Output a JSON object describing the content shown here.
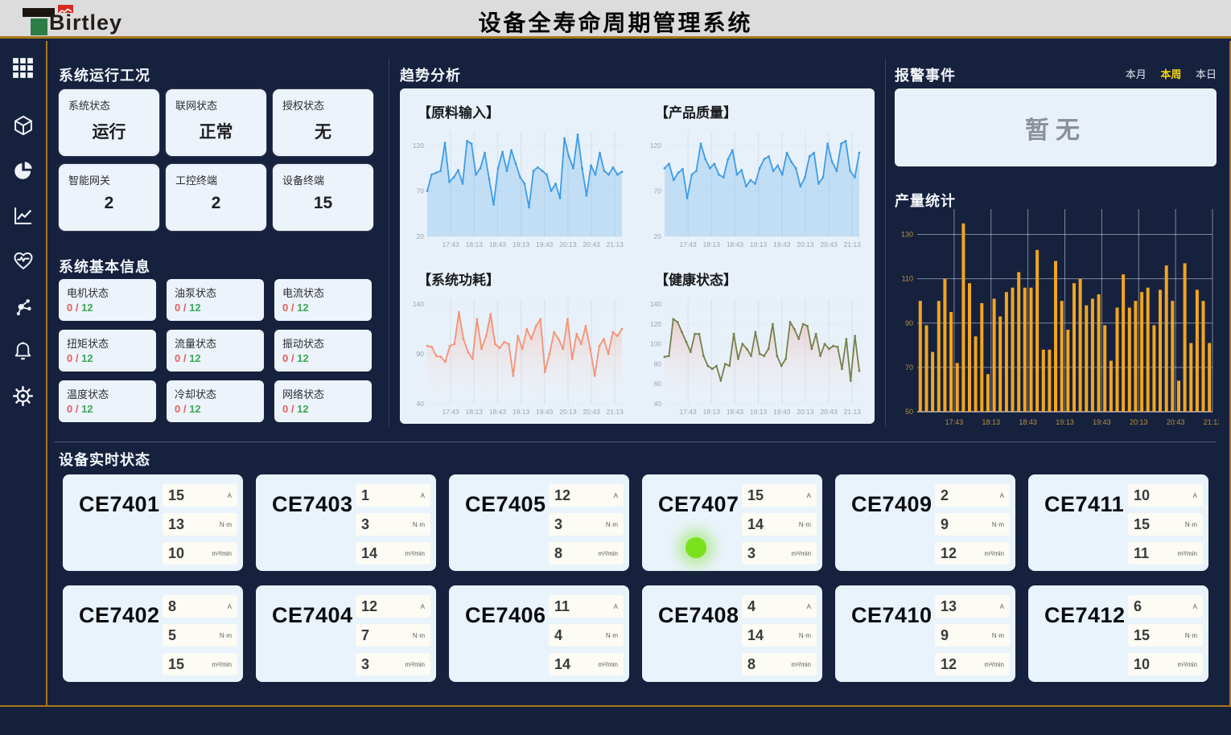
{
  "header": {
    "logo_text": "Birtley",
    "title": "设备全寿命周期管理系统"
  },
  "sidebar": {
    "icons": [
      "apps-grid-icon",
      "cube-icon",
      "pie-chart-icon",
      "line-chart-icon",
      "health-pulse-icon",
      "network-nodes-icon",
      "bell-icon",
      "gear-icon"
    ]
  },
  "colors": {
    "accent_gold": "#a8771d",
    "bg_dark": "#16213e",
    "card_light": "#ecf3fb",
    "bar_orange": "#f2a51f",
    "line_blue": "#3d9ce8",
    "line_salmon": "#f59274",
    "line_olive": "#74824a",
    "tab_active_yellow": "#f3d516",
    "status_red": "#e06060",
    "status_green": "#3da857",
    "indicator_green": "#7be01e"
  },
  "system_status": {
    "title": "系统运行工况",
    "cards": [
      {
        "label": "系统状态",
        "value": "运行"
      },
      {
        "label": "联网状态",
        "value": "正常"
      },
      {
        "label": "授权状态",
        "value": "无"
      },
      {
        "label": "智能网关",
        "value": "2"
      },
      {
        "label": "工控终端",
        "value": "2"
      },
      {
        "label": "设备终端",
        "value": "15"
      }
    ]
  },
  "system_info": {
    "title": "系统基本信息",
    "cards": [
      {
        "label": "电机状态",
        "current": "0",
        "divider": "/",
        "total": "12"
      },
      {
        "label": "油泵状态",
        "current": "0",
        "divider": "/",
        "total": "12"
      },
      {
        "label": "电流状态",
        "current": "0",
        "divider": "/",
        "total": "12"
      },
      {
        "label": "扭矩状态",
        "current": "0",
        "divider": "/",
        "total": "12"
      },
      {
        "label": "流量状态",
        "current": "0",
        "divider": "/",
        "total": "12"
      },
      {
        "label": "振动状态",
        "current": "0",
        "divider": "/",
        "total": "12"
      },
      {
        "label": "温度状态",
        "current": "0",
        "divider": "/",
        "total": "12"
      },
      {
        "label": "冷却状态",
        "current": "0",
        "divider": "/",
        "total": "12"
      },
      {
        "label": "网络状态",
        "current": "0",
        "divider": "/",
        "total": "12"
      }
    ]
  },
  "trend": {
    "title": "趋势分析"
  },
  "alarms": {
    "title": "报警事件",
    "tabs": [
      {
        "label": "本月",
        "active": false
      },
      {
        "label": "本周",
        "active": true
      },
      {
        "label": "本日",
        "active": false
      }
    ],
    "empty_text": "暂无"
  },
  "production": {
    "title": "产量统计"
  },
  "devices": {
    "title": "设备实时状态",
    "units": [
      "A",
      "N·m",
      "m³/min"
    ],
    "cards": [
      {
        "name": "CE7401",
        "values": [
          15,
          13,
          10
        ]
      },
      {
        "name": "CE7403",
        "values": [
          1,
          3,
          14
        ]
      },
      {
        "name": "CE7405",
        "values": [
          12,
          3,
          8
        ]
      },
      {
        "name": "CE7407",
        "values": [
          15,
          14,
          3
        ],
        "indicator": true
      },
      {
        "name": "CE7409",
        "values": [
          2,
          9,
          12
        ]
      },
      {
        "name": "CE7411",
        "values": [
          10,
          15,
          11
        ]
      },
      {
        "name": "CE7402",
        "values": [
          8,
          5,
          15
        ]
      },
      {
        "name": "CE7404",
        "values": [
          12,
          7,
          3
        ]
      },
      {
        "name": "CE7406",
        "values": [
          11,
          4,
          14
        ]
      },
      {
        "name": "CE7408",
        "values": [
          4,
          14,
          8
        ]
      },
      {
        "name": "CE7410",
        "values": [
          13,
          9,
          12
        ]
      },
      {
        "name": "CE7412",
        "values": [
          6,
          15,
          10
        ]
      }
    ]
  },
  "chart_data": [
    {
      "type": "line",
      "title": "【原料输入】",
      "color": "#3d9ce8",
      "fill": "rgba(61,156,232,0.22)",
      "ylim": [
        20,
        135
      ],
      "yticks": [
        20,
        70,
        120
      ],
      "grid": true,
      "legend": "none",
      "x_labels": [
        "17:43",
        "18:13",
        "18:43",
        "19:13",
        "19:43",
        "20:13",
        "20:43",
        "21:13"
      ],
      "values": [
        70,
        88,
        90,
        92,
        123,
        80,
        85,
        93,
        78,
        125,
        122,
        88,
        95,
        112,
        83,
        55,
        95,
        113,
        92,
        115,
        100,
        85,
        78,
        52,
        92,
        96,
        92,
        88,
        70,
        78,
        62,
        128,
        108,
        95,
        132,
        95,
        65,
        98,
        88,
        112,
        92,
        88,
        96,
        88,
        91
      ]
    },
    {
      "type": "line",
      "title": "【产品质量】",
      "color": "#3d9ce8",
      "fill": "rgba(61,156,232,0.22)",
      "ylim": [
        20,
        135
      ],
      "yticks": [
        20,
        70,
        120
      ],
      "grid": true,
      "legend": "none",
      "x_labels": [
        "17:43",
        "18:13",
        "18:43",
        "19:13",
        "19:43",
        "20:13",
        "20:43",
        "21:13"
      ],
      "values": [
        95,
        100,
        82,
        90,
        94,
        62,
        88,
        92,
        122,
        105,
        95,
        100,
        88,
        85,
        105,
        115,
        88,
        93,
        75,
        82,
        78,
        95,
        105,
        108,
        92,
        98,
        88,
        112,
        102,
        95,
        75,
        85,
        108,
        112,
        78,
        85,
        122,
        102,
        92,
        122,
        125,
        92,
        85,
        112
      ]
    },
    {
      "type": "line",
      "title": "【系统功耗】",
      "color": "#f59274",
      "fill_from": "rgba(247,150,120,0.40)",
      "fill_to": "rgba(255,240,238,0)",
      "ylim": [
        40,
        145
      ],
      "yticks": [
        40,
        90,
        140
      ],
      "grid": true,
      "legend": "none",
      "x_labels": [
        "17:43",
        "18:13",
        "18:43",
        "19:13",
        "19:43",
        "20:13",
        "20:43",
        "21:13"
      ],
      "values": [
        98,
        97,
        88,
        87,
        82,
        98,
        100,
        132,
        105,
        92,
        85,
        125,
        95,
        108,
        130,
        100,
        96,
        102,
        100,
        68,
        108,
        95,
        115,
        105,
        118,
        125,
        72,
        90,
        112,
        105,
        95,
        125,
        85,
        110,
        100,
        118,
        95,
        68,
        98,
        105,
        90,
        112,
        108,
        115
      ]
    },
    {
      "type": "line",
      "title": "【健康状态】",
      "color": "#74824a",
      "fill_from": "rgba(240,140,130,0.35)",
      "fill_to": "rgba(255,240,238,0)",
      "ylim": [
        40,
        145
      ],
      "yticks": [
        40,
        60,
        80,
        100,
        120,
        140
      ],
      "grid": true,
      "legend": "none",
      "x_labels": [
        "17:43",
        "18:13",
        "18:43",
        "19:13",
        "19:43",
        "20:13",
        "20:43",
        "21:13"
      ],
      "values": [
        87,
        88,
        125,
        122,
        112,
        102,
        92,
        110,
        110,
        88,
        78,
        75,
        78,
        63,
        80,
        78,
        110,
        85,
        100,
        95,
        88,
        112,
        90,
        88,
        95,
        120,
        88,
        78,
        85,
        122,
        115,
        105,
        120,
        118,
        95,
        110,
        88,
        100,
        95,
        98,
        97,
        75,
        105,
        63,
        108,
        73
      ]
    },
    {
      "type": "bar",
      "title": "产量统计",
      "color": "#f2a51f",
      "ylim": [
        50,
        140
      ],
      "yticks": [
        50,
        70,
        90,
        110,
        130
      ],
      "grid": true,
      "legend": "none",
      "x_labels": [
        "17:43",
        "18:13",
        "18:43",
        "19:13",
        "19:43",
        "20:13",
        "20:43",
        "21:13"
      ],
      "values": [
        100,
        89,
        77,
        100,
        110,
        95,
        72,
        135,
        108,
        84,
        99,
        67,
        101,
        93,
        104,
        106,
        113,
        106,
        106,
        123,
        78,
        78,
        118,
        100,
        87,
        108,
        110,
        98,
        101,
        103,
        89,
        73,
        97,
        112,
        97,
        100,
        104,
        106,
        89,
        105,
        116,
        100,
        64,
        117,
        81,
        105,
        100,
        81
      ]
    }
  ]
}
